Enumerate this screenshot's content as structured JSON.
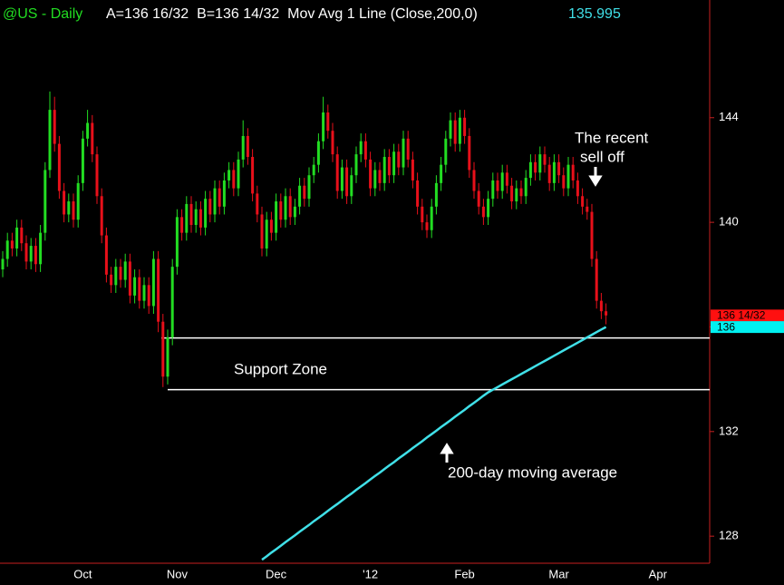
{
  "chart_data": {
    "type": "candlestick",
    "title": "@US - Daily",
    "subtitle": "A=136 16/32  B=136 14/32  Mov Avg 1 Line (Close,200,0)",
    "ylim": [
      127,
      148.5
    ],
    "yticks": [
      128,
      132,
      136,
      140,
      144
    ],
    "up_color": "#22dd22",
    "down_color": "#e8101a",
    "categories": [
      null,
      null,
      null,
      null,
      null,
      null,
      null,
      null,
      null,
      null,
      null,
      null,
      null,
      null,
      null,
      null,
      null,
      "Oct",
      null,
      null,
      null,
      null,
      null,
      null,
      null,
      null,
      null,
      null,
      null,
      null,
      null,
      null,
      null,
      null,
      null,
      null,
      null,
      "Nov",
      null,
      null,
      null,
      null,
      null,
      null,
      null,
      null,
      null,
      null,
      null,
      null,
      null,
      null,
      null,
      null,
      null,
      null,
      null,
      null,
      "Dec",
      null,
      null,
      null,
      null,
      null,
      null,
      null,
      null,
      null,
      null,
      null,
      null,
      null,
      null,
      null,
      null,
      null,
      null,
      null,
      "'12",
      null,
      null,
      null,
      null,
      null,
      null,
      null,
      null,
      null,
      null,
      null,
      null,
      null,
      null,
      null,
      null,
      null,
      null,
      null,
      "Feb",
      null,
      null,
      null,
      null,
      null,
      null,
      null,
      null,
      null,
      null,
      null,
      null,
      null,
      null,
      null,
      null,
      null,
      null,
      null,
      "Mar",
      null,
      null,
      null,
      null,
      null,
      null,
      null,
      null,
      null,
      null,
      null,
      null,
      null,
      null,
      null,
      null,
      null,
      null,
      null,
      null,
      "Apr",
      null,
      null,
      null,
      null,
      null,
      null,
      null,
      null,
      null,
      null
    ],
    "open": [
      138.2,
      138.6,
      139.3,
      139.0,
      139.8,
      139.2,
      138.5,
      139.1,
      138.4,
      139.6,
      142.0,
      144.3,
      143.0,
      141.2,
      140.3,
      140.8,
      140.1,
      141.5,
      143.2,
      143.8,
      142.6,
      141.0,
      139.5,
      138.0,
      137.6,
      138.3,
      137.8,
      138.5,
      137.2,
      137.9,
      137.0,
      137.6,
      136.8,
      138.6,
      136.2,
      134.1,
      135.6,
      138.3,
      140.2,
      139.6,
      140.7,
      139.9,
      140.5,
      139.8,
      140.9,
      140.3,
      141.3,
      140.6,
      141.6,
      142.0,
      141.3,
      142.4,
      143.3,
      142.5,
      141.1,
      140.3,
      139.0,
      140.1,
      139.6,
      140.8,
      140.1,
      141.0,
      140.2,
      140.6,
      141.4,
      140.9,
      141.8,
      142.2,
      143.1,
      144.2,
      143.5,
      142.6,
      141.2,
      142.1,
      141.0,
      141.8,
      142.6,
      143.1,
      142.4,
      141.3,
      142.0,
      141.5,
      142.5,
      141.8,
      142.7,
      142.1,
      143.2,
      142.4,
      141.6,
      140.6,
      140.0,
      139.7,
      140.6,
      141.5,
      142.2,
      143.2,
      143.9,
      143.0,
      144.0,
      143.3,
      142.0,
      141.2,
      140.6,
      140.2,
      140.9,
      141.6,
      141.2,
      141.9,
      141.4,
      140.8,
      141.3,
      141.0,
      141.7,
      142.3,
      141.9,
      142.6,
      142.2,
      141.5,
      142.3,
      141.8,
      141.3,
      142.2,
      141.6,
      141.0,
      140.6,
      140.4,
      138.6,
      137.0,
      136.6,
      null,
      null,
      null,
      null,
      null,
      null,
      null,
      null,
      null,
      null,
      null,
      null,
      null,
      null,
      null,
      null,
      null,
      null,
      null,
      null,
      null
    ],
    "high": [
      138.9,
      139.6,
      139.6,
      140.1,
      140.1,
      139.5,
      139.4,
      139.4,
      139.9,
      142.3,
      145.0,
      144.8,
      143.3,
      141.5,
      141.1,
      141.1,
      141.8,
      143.5,
      144.3,
      144.1,
      142.9,
      141.3,
      139.8,
      138.3,
      138.6,
      138.6,
      138.8,
      138.8,
      138.2,
      138.2,
      137.9,
      137.9,
      138.9,
      138.9,
      136.5,
      135.9,
      138.6,
      140.5,
      140.5,
      141.0,
      141.0,
      140.8,
      140.8,
      141.2,
      141.2,
      141.6,
      141.6,
      141.9,
      142.3,
      142.3,
      142.7,
      143.9,
      143.6,
      142.8,
      141.4,
      140.6,
      140.4,
      140.4,
      141.1,
      141.1,
      141.3,
      141.3,
      140.9,
      141.7,
      141.7,
      142.1,
      142.5,
      143.4,
      144.8,
      144.5,
      143.8,
      142.9,
      142.4,
      142.4,
      142.1,
      142.9,
      143.4,
      143.4,
      142.7,
      142.3,
      142.3,
      142.8,
      142.8,
      143.0,
      143.0,
      143.5,
      143.5,
      142.7,
      141.9,
      140.9,
      140.3,
      140.9,
      141.8,
      142.5,
      143.5,
      144.2,
      144.2,
      144.3,
      144.3,
      143.6,
      142.3,
      141.5,
      140.9,
      141.2,
      141.9,
      141.9,
      142.2,
      142.2,
      141.7,
      141.6,
      141.6,
      142.0,
      142.6,
      142.6,
      142.9,
      142.9,
      142.5,
      142.6,
      142.6,
      142.1,
      142.5,
      142.5,
      141.9,
      141.3,
      140.9,
      140.7,
      138.9,
      137.3,
      136.9,
      null,
      null,
      null,
      null,
      null,
      null,
      null,
      null,
      null,
      null,
      null,
      null,
      null,
      null,
      null,
      null,
      null,
      null,
      null,
      null,
      null
    ],
    "low": [
      137.9,
      138.3,
      138.7,
      138.7,
      138.9,
      138.2,
      138.2,
      138.1,
      138.1,
      139.3,
      141.7,
      142.7,
      140.9,
      140.0,
      140.0,
      139.8,
      139.8,
      141.2,
      142.9,
      142.3,
      140.7,
      139.2,
      137.7,
      137.3,
      137.3,
      137.5,
      137.5,
      136.9,
      136.9,
      136.7,
      136.7,
      136.5,
      136.5,
      135.8,
      133.7,
      133.8,
      135.3,
      138.0,
      139.3,
      139.3,
      139.6,
      139.6,
      139.5,
      139.5,
      140.0,
      140.0,
      140.3,
      140.3,
      141.3,
      141.0,
      141.0,
      142.1,
      142.2,
      140.8,
      140.0,
      138.7,
      138.7,
      139.3,
      139.3,
      139.8,
      139.8,
      139.9,
      139.9,
      140.3,
      140.6,
      140.6,
      141.5,
      141.9,
      142.8,
      143.2,
      142.3,
      140.9,
      140.9,
      140.7,
      140.7,
      141.5,
      142.3,
      142.1,
      141.0,
      141.0,
      141.2,
      141.2,
      141.5,
      141.5,
      141.8,
      141.8,
      142.1,
      141.3,
      140.3,
      139.7,
      139.4,
      139.4,
      140.3,
      141.2,
      141.9,
      142.9,
      142.7,
      142.7,
      143.0,
      141.7,
      140.9,
      140.3,
      139.9,
      139.9,
      140.6,
      140.9,
      140.9,
      141.1,
      140.5,
      140.5,
      140.7,
      140.7,
      141.4,
      141.6,
      141.6,
      141.9,
      141.2,
      141.2,
      141.5,
      141.0,
      141.0,
      141.3,
      140.7,
      140.3,
      140.1,
      138.3,
      136.7,
      136.3,
      136.1,
      null,
      null,
      null,
      null,
      null,
      null,
      null,
      null,
      null,
      null,
      null,
      null,
      null,
      null,
      null,
      null,
      null,
      null,
      null,
      null,
      null
    ],
    "close": [
      138.6,
      139.3,
      139.0,
      139.8,
      139.2,
      138.5,
      139.1,
      138.4,
      139.6,
      142.0,
      144.3,
      143.0,
      141.2,
      140.3,
      140.8,
      140.1,
      141.5,
      143.2,
      143.8,
      142.6,
      141.0,
      139.5,
      138.0,
      137.6,
      138.3,
      137.8,
      138.5,
      137.2,
      137.9,
      137.0,
      137.6,
      136.8,
      138.6,
      136.2,
      134.1,
      135.6,
      138.3,
      140.2,
      139.6,
      140.7,
      139.9,
      140.5,
      139.8,
      140.9,
      140.3,
      141.3,
      140.6,
      141.6,
      142.0,
      141.3,
      142.4,
      143.3,
      142.5,
      141.1,
      140.3,
      139.0,
      140.1,
      139.6,
      140.8,
      140.1,
      141.0,
      140.2,
      140.6,
      141.4,
      140.9,
      141.8,
      142.2,
      143.1,
      144.2,
      143.5,
      142.6,
      141.2,
      142.1,
      141.0,
      141.8,
      142.6,
      143.1,
      142.4,
      141.3,
      142.0,
      141.5,
      142.5,
      141.8,
      142.7,
      142.1,
      143.2,
      142.4,
      141.6,
      140.6,
      140.0,
      139.7,
      140.6,
      141.5,
      142.2,
      143.2,
      143.9,
      143.0,
      144.0,
      143.3,
      142.0,
      141.2,
      140.6,
      140.2,
      140.9,
      141.6,
      141.2,
      141.9,
      141.4,
      140.8,
      141.3,
      141.0,
      141.7,
      142.3,
      141.9,
      142.6,
      142.2,
      141.5,
      142.3,
      141.8,
      141.3,
      142.2,
      141.6,
      141.0,
      140.6,
      140.4,
      138.6,
      137.0,
      136.6,
      136.44,
      null,
      null,
      null,
      null,
      null,
      null,
      null,
      null,
      null,
      null,
      null,
      null,
      null,
      null,
      null,
      null,
      null,
      null,
      null,
      null,
      null
    ],
    "overlay": {
      "type": "line",
      "color": "#40e0e8",
      "last_value": 135.995,
      "values": [
        null,
        null,
        null,
        null,
        null,
        null,
        null,
        null,
        null,
        null,
        null,
        null,
        null,
        null,
        null,
        null,
        null,
        null,
        null,
        null,
        null,
        null,
        null,
        null,
        null,
        null,
        null,
        null,
        null,
        null,
        null,
        null,
        null,
        null,
        null,
        null,
        null,
        null,
        null,
        null,
        null,
        null,
        null,
        null,
        null,
        null,
        null,
        null,
        null,
        null,
        null,
        null,
        null,
        null,
        null,
        127.1,
        127.23,
        127.37,
        127.5,
        127.63,
        127.77,
        127.9,
        128.03,
        128.17,
        128.3,
        128.43,
        128.57,
        128.7,
        128.83,
        128.97,
        129.1,
        129.23,
        129.37,
        129.5,
        129.63,
        129.77,
        129.9,
        130.03,
        130.17,
        130.3,
        130.43,
        130.57,
        130.7,
        130.83,
        130.97,
        131.1,
        131.23,
        131.37,
        131.5,
        131.63,
        131.77,
        131.9,
        132.03,
        132.17,
        132.3,
        132.43,
        132.57,
        132.7,
        132.83,
        132.97,
        133.1,
        133.23,
        133.37,
        133.5,
        133.6,
        133.7,
        133.8,
        133.9,
        134.0,
        134.1,
        134.2,
        134.3,
        134.4,
        134.5,
        134.6,
        134.7,
        134.8,
        134.9,
        135.0,
        135.1,
        135.2,
        135.3,
        135.4,
        135.5,
        135.6,
        135.7,
        135.8,
        135.9,
        135.995,
        null,
        null,
        null,
        null,
        null,
        null,
        null,
        null,
        null,
        null,
        null,
        null,
        null,
        null,
        null,
        null,
        null,
        null,
        null,
        null,
        null
      ]
    },
    "price_markers": [
      {
        "value": 136.4375,
        "label": "136 14/32",
        "color": "#ff1010"
      },
      {
        "value": 135.995,
        "label": "136",
        "color": "#00f0f0"
      }
    ],
    "levels": [
      135.58,
      133.6
    ],
    "annotations": {
      "sell_off": [
        "The recent",
        "sell off"
      ],
      "support_zone": "Support Zone",
      "moving_average": "200-day moving average"
    }
  }
}
